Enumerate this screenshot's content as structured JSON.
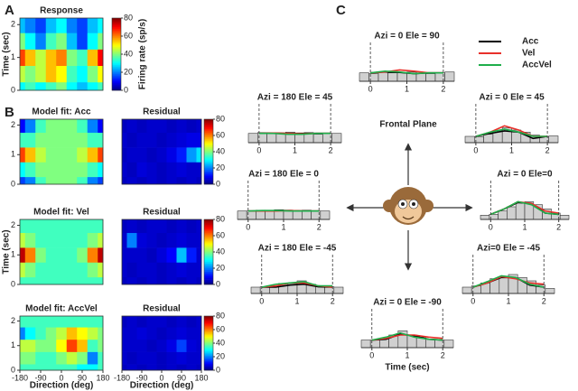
{
  "chart_data": [
    {
      "type": "heatmap",
      "panel_label": "A",
      "title": "Response",
      "ylabel": "Time (sec)",
      "colorbar_label": "Firing rate (sp/s)",
      "x": [
        -180,
        -135,
        -90,
        -45,
        0,
        45,
        90,
        135,
        180
      ],
      "y": [
        0,
        0.5,
        1,
        1.5,
        2
      ],
      "xlim": [
        -180,
        180
      ],
      "ylim": [
        0,
        2.2
      ],
      "yticks": [
        0,
        1,
        2
      ],
      "clim": [
        0,
        80
      ],
      "cticks": [
        0,
        20,
        40,
        60,
        80
      ],
      "z": [
        [
          30,
          35,
          30,
          35,
          40,
          30,
          25,
          30,
          35
        ],
        [
          45,
          40,
          45,
          55,
          50,
          35,
          30,
          40,
          50
        ],
        [
          65,
          55,
          45,
          55,
          60,
          40,
          35,
          55,
          70
        ],
        [
          40,
          30,
          20,
          35,
          40,
          25,
          15,
          30,
          40
        ],
        [
          25,
          20,
          15,
          25,
          30,
          20,
          15,
          25,
          30
        ]
      ]
    },
    {
      "type": "heatmap",
      "panel_label": "B",
      "title": "Model fit:  Acc",
      "x": [
        -180,
        -135,
        -90,
        -45,
        0,
        45,
        90,
        135,
        180
      ],
      "y": [
        0,
        0.5,
        1,
        1.5,
        2
      ],
      "xlim": [
        -180,
        180
      ],
      "ylim": [
        0,
        2.2
      ],
      "yticks": [
        0,
        1,
        2
      ],
      "z": [
        [
          15,
          20,
          35,
          40,
          40,
          40,
          35,
          20,
          15
        ],
        [
          30,
          35,
          40,
          40,
          40,
          40,
          40,
          35,
          30
        ],
        [
          65,
          55,
          45,
          40,
          40,
          40,
          45,
          55,
          65
        ],
        [
          35,
          35,
          40,
          40,
          40,
          40,
          40,
          35,
          35
        ],
        [
          10,
          20,
          35,
          40,
          40,
          40,
          35,
          20,
          10
        ]
      ]
    },
    {
      "type": "heatmap",
      "title": "Residual",
      "x": [
        -180,
        -135,
        -90,
        -45,
        0,
        45,
        90,
        135,
        180
      ],
      "y": [
        0,
        0.5,
        1,
        1.5,
        2
      ],
      "xlim": [
        -180,
        180
      ],
      "ylim": [
        0,
        2.2
      ],
      "clim": [
        0,
        80
      ],
      "cticks": [
        0,
        20,
        40,
        60,
        80
      ],
      "z": [
        [
          5,
          6,
          5,
          6,
          5,
          6,
          5,
          6,
          5
        ],
        [
          6,
          5,
          7,
          6,
          5,
          6,
          7,
          6,
          6
        ],
        [
          5,
          6,
          6,
          5,
          6,
          8,
          12,
          22,
          28
        ],
        [
          6,
          5,
          6,
          6,
          5,
          6,
          7,
          8,
          8
        ],
        [
          5,
          6,
          5,
          6,
          6,
          5,
          6,
          5,
          6
        ]
      ]
    },
    {
      "type": "heatmap",
      "title": "Model fit:  Vel",
      "ylabel": "Time (sec)",
      "x": [
        -180,
        -135,
        -90,
        -45,
        0,
        45,
        90,
        135,
        180
      ],
      "y": [
        0,
        0.5,
        1,
        1.5,
        2
      ],
      "xlim": [
        -180,
        180
      ],
      "ylim": [
        0,
        2.2
      ],
      "yticks": [
        0,
        1,
        2
      ],
      "z": [
        [
          35,
          35,
          35,
          35,
          35,
          35,
          35,
          35,
          35
        ],
        [
          45,
          40,
          35,
          35,
          35,
          35,
          35,
          40,
          45
        ],
        [
          75,
          60,
          40,
          35,
          35,
          35,
          40,
          60,
          75
        ],
        [
          45,
          40,
          35,
          35,
          35,
          35,
          35,
          40,
          45
        ],
        [
          35,
          35,
          35,
          35,
          35,
          35,
          35,
          35,
          35
        ]
      ]
    },
    {
      "type": "heatmap",
      "title": "Residual",
      "x": [
        -180,
        -135,
        -90,
        -45,
        0,
        45,
        90,
        135,
        180
      ],
      "y": [
        0,
        0.5,
        1,
        1.5,
        2
      ],
      "xlim": [
        -180,
        180
      ],
      "ylim": [
        0,
        2.2
      ],
      "clim": [
        0,
        80
      ],
      "cticks": [
        0,
        20,
        40,
        60,
        80
      ],
      "z": [
        [
          5,
          6,
          5,
          6,
          5,
          6,
          5,
          6,
          5
        ],
        [
          6,
          5,
          6,
          6,
          5,
          6,
          7,
          6,
          6
        ],
        [
          6,
          6,
          6,
          5,
          7,
          10,
          25,
          12,
          6
        ],
        [
          6,
          20,
          7,
          6,
          5,
          6,
          7,
          6,
          6
        ],
        [
          5,
          6,
          5,
          6,
          6,
          5,
          6,
          5,
          6
        ]
      ]
    },
    {
      "type": "heatmap",
      "title": "Model fit:  AccVel",
      "x": [
        -180,
        -135,
        -90,
        -45,
        0,
        45,
        90,
        135,
        180
      ],
      "y": [
        0,
        0.5,
        1,
        1.5,
        2
      ],
      "xlim": [
        -180,
        180
      ],
      "ylim": [
        0,
        2.2
      ],
      "yticks": [
        0,
        1,
        2
      ],
      "xticks": [
        -180,
        -90,
        0,
        90,
        180
      ],
      "xlabel": "Direction (deg)",
      "z": [
        [
          35,
          35,
          35,
          35,
          35,
          35,
          30,
          30,
          35
        ],
        [
          40,
          40,
          35,
          35,
          40,
          45,
          40,
          20,
          35
        ],
        [
          45,
          45,
          40,
          40,
          50,
          65,
          55,
          35,
          40
        ],
        [
          20,
          30,
          35,
          40,
          45,
          55,
          50,
          45,
          40
        ],
        [
          35,
          35,
          35,
          35,
          35,
          35,
          35,
          35,
          35
        ]
      ]
    },
    {
      "type": "heatmap",
      "title": "Residual",
      "x": [
        -180,
        -135,
        -90,
        -45,
        0,
        45,
        90,
        135,
        180
      ],
      "y": [
        0,
        0.5,
        1,
        1.5,
        2
      ],
      "xlim": [
        -180,
        180
      ],
      "ylim": [
        0,
        2.2
      ],
      "xticks": [
        -180,
        -90,
        0,
        90,
        180
      ],
      "xlabel": "Direction (deg)",
      "clim": [
        0,
        80
      ],
      "cticks": [
        0,
        20,
        40,
        60,
        80
      ],
      "z": [
        [
          5,
          6,
          5,
          6,
          5,
          6,
          5,
          6,
          5
        ],
        [
          6,
          5,
          6,
          6,
          5,
          6,
          7,
          6,
          6
        ],
        [
          6,
          6,
          6,
          5,
          6,
          8,
          15,
          7,
          6
        ],
        [
          6,
          6,
          7,
          6,
          5,
          6,
          7,
          6,
          6
        ],
        [
          5,
          6,
          5,
          6,
          6,
          5,
          6,
          5,
          6
        ]
      ]
    },
    {
      "type": "psth",
      "panel_label": "C",
      "plane_label": "Frontal Plane",
      "xlabel": "Time (sec)",
      "xlim": [
        -0.3,
        2.3
      ],
      "xticks": [
        0,
        1,
        2
      ],
      "ylim": [
        0,
        60
      ],
      "bins": [
        -0.3,
        -0.04,
        0.22,
        0.48,
        0.74,
        1,
        1.26,
        1.52,
        1.78,
        2.04,
        2.3
      ],
      "t": [
        0,
        0.4,
        0.8,
        1.2,
        1.6,
        2
      ],
      "legend": [
        {
          "name": "Acc",
          "color": "#000000"
        },
        {
          "name": "Vel",
          "color": "#e8302a"
        },
        {
          "name": "AccVel",
          "color": "#1fae4b"
        }
      ],
      "panels": [
        {
          "title": "Azi = 0 Ele = 90",
          "bars": [
            20,
            18,
            22,
            20,
            20,
            22,
            20,
            18,
            20,
            22
          ],
          "lines": [
            [
              20,
              22,
              21,
              18,
              20,
              20
            ],
            [
              20,
              22,
              27,
              24,
              20,
              20
            ],
            [
              20,
              24,
              22,
              18,
              20,
              20
            ]
          ]
        },
        {
          "title": "Azi = 180 Ele = 45",
          "bars": [
            22,
            24,
            24,
            22,
            25,
            22,
            24,
            20,
            22,
            22
          ],
          "lines": [
            [
              22,
              23,
              22,
              22,
              22,
              22
            ],
            [
              22,
              23,
              22,
              21,
              22,
              22
            ],
            [
              22,
              22,
              20,
              20,
              22,
              22
            ]
          ]
        },
        {
          "title": "Azi = 0 Ele = 45",
          "bars": [
            15,
            14,
            20,
            28,
            35,
            30,
            25,
            18,
            14,
            16
          ],
          "lines": [
            [
              15,
              22,
              28,
              25,
              10,
              15
            ],
            [
              15,
              25,
              40,
              30,
              15,
              15
            ],
            [
              15,
              25,
              32,
              25,
              15,
              15
            ]
          ]
        },
        {
          "title": "Azi = 180 Ele = 0",
          "bars": [
            20,
            20,
            22,
            22,
            23,
            22,
            20,
            22,
            20,
            20
          ],
          "lines": [
            [
              20,
              20,
              21,
              21,
              20,
              20
            ],
            [
              20,
              20,
              20,
              21,
              20,
              20
            ],
            [
              20,
              21,
              21,
              20,
              20,
              20
            ]
          ]
        },
        {
          "title": "Azi = 0 Ele=0",
          "bars": [
            10,
            12,
            20,
            30,
            40,
            42,
            35,
            25,
            15,
            10
          ],
          "lines": [
            [
              12,
              25,
              40,
              38,
              15,
              12
            ],
            [
              12,
              25,
              42,
              38,
              20,
              15
            ],
            [
              12,
              25,
              42,
              35,
              15,
              12
            ]
          ]
        },
        {
          "title": "Azi = 180 Ele = -45",
          "bars": [
            15,
            16,
            18,
            24,
            24,
            30,
            22,
            18,
            16,
            15
          ],
          "lines": [
            [
              15,
              15,
              20,
              22,
              16,
              15
            ],
            [
              15,
              18,
              25,
              25,
              18,
              15
            ],
            [
              15,
              22,
              25,
              28,
              18,
              18
            ]
          ]
        },
        {
          "title": "Azi=0 Ele = -45",
          "bars": [
            15,
            18,
            25,
            35,
            40,
            45,
            38,
            30,
            20,
            12
          ],
          "lines": [
            [
              15,
              25,
              38,
              38,
              20,
              15
            ],
            [
              15,
              25,
              40,
              35,
              25,
              22
            ],
            [
              15,
              28,
              42,
              38,
              22,
              15
            ]
          ]
        },
        {
          "title": "Azi = 0 Ele = -90",
          "bars": [
            18,
            18,
            22,
            30,
            40,
            30,
            25,
            20,
            18,
            18
          ],
          "lines": [
            [
              18,
              20,
              32,
              28,
              20,
              18
            ],
            [
              18,
              22,
              30,
              30,
              25,
              22
            ],
            [
              18,
              25,
              35,
              25,
              20,
              18
            ]
          ]
        }
      ]
    }
  ]
}
